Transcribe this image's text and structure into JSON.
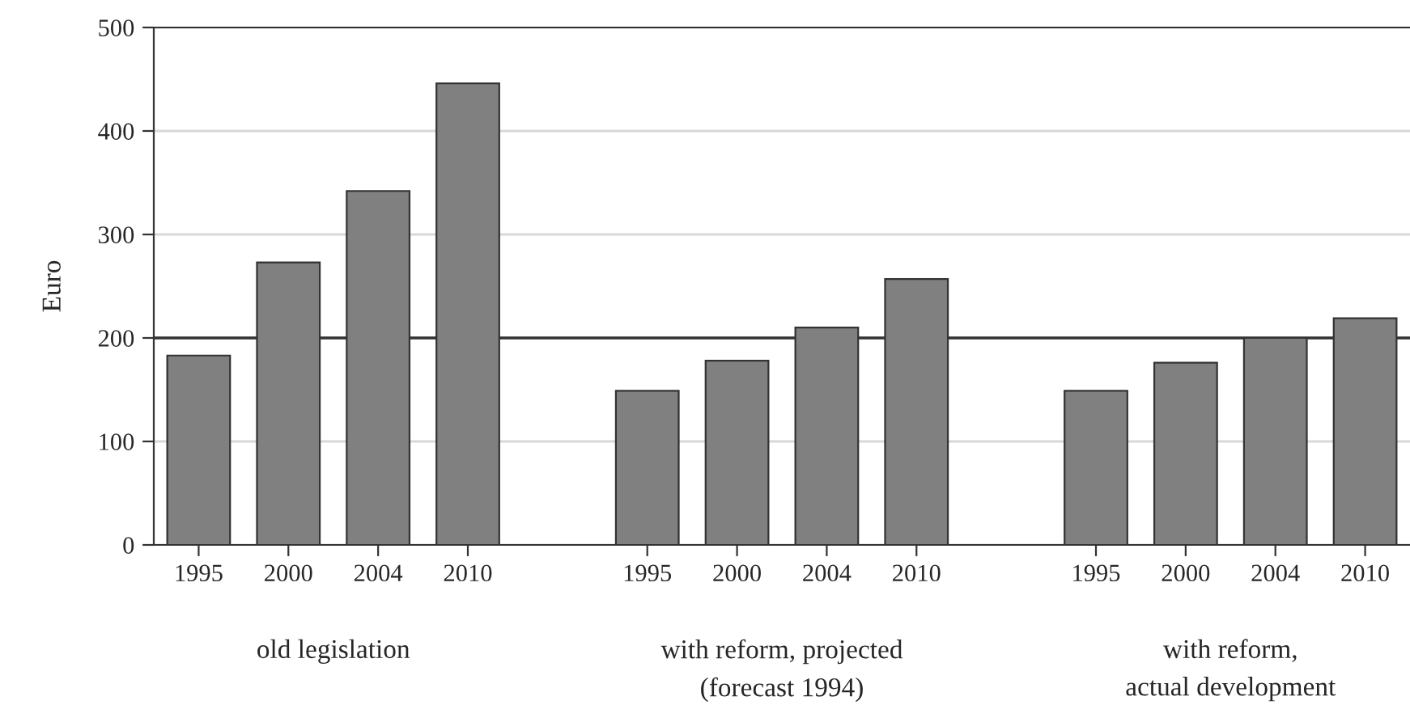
{
  "chart_data": {
    "type": "bar",
    "ylabel": "Euro",
    "categories": [
      "1995",
      "2000",
      "2004",
      "2010",
      null,
      "1995",
      "2000",
      "2004",
      "2010",
      null,
      "1995",
      "2000",
      "2004",
      "2010"
    ],
    "series": [
      {
        "color": "#808080",
        "values": [
          183,
          273,
          342,
          446,
          null,
          149,
          178,
          210,
          257,
          null,
          149,
          176,
          200,
          219
        ]
      }
    ],
    "ylim": [
      0,
      500
    ],
    "yticks": [
      0,
      100,
      200,
      300,
      400,
      500
    ],
    "grid": "y",
    "ref_lines": [
      {
        "axis": "y",
        "value": 200,
        "color": "#333333"
      }
    ],
    "annotations": [
      "old legislation",
      "with reform, projected\n(forecast 1994)",
      "with reform,\nactual development"
    ]
  }
}
